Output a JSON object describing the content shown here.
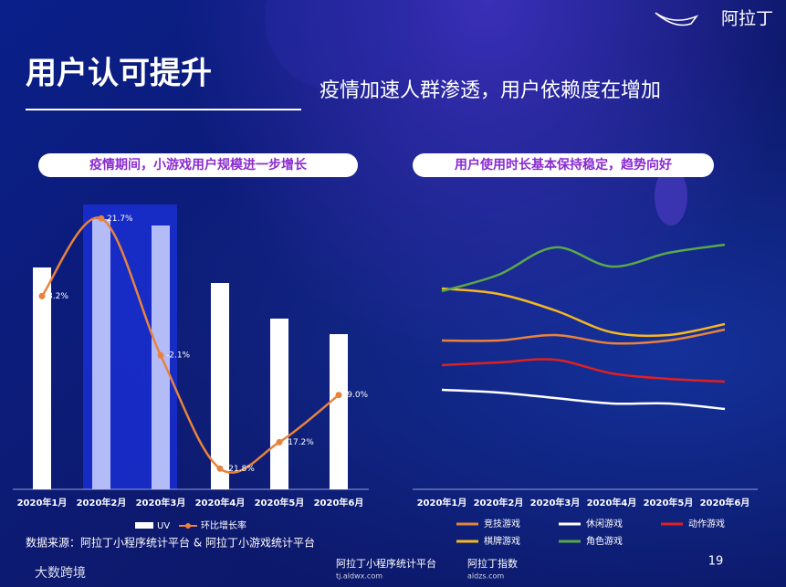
{
  "header": {
    "logo": "阿拉丁",
    "title": "用户认可提升",
    "subtitle": "疫情加速人群渗透，用户依赖度在增加"
  },
  "chart_data": [
    {
      "type": "bar",
      "title": "疫情期间，小游戏用户规模进一步增长",
      "categories": [
        "2020年1月",
        "2020年2月",
        "2020年3月",
        "2020年4月",
        "2020年5月",
        "2020年6月"
      ],
      "ylim": [
        0,
        320
      ],
      "y2lim": [
        -25.4,
        25.4
      ],
      "series": [
        {
          "name": "UV",
          "type": "bar",
          "color": "#ffffff",
          "values": [
            243,
            296,
            289,
            226,
            187,
            170
          ]
        },
        {
          "name": "环比增长率",
          "type": "line",
          "axis": "y2",
          "color": "#e8823c",
          "values": [
            8.2,
            21.7,
            -2.1,
            -21.8,
            -17.2,
            -9.0
          ],
          "value_labels": [
            "8.2%",
            "21.7%",
            "-2.1%",
            "-21.8%",
            "-17.2%",
            "-9.0%"
          ]
        }
      ]
    },
    {
      "type": "line",
      "title": "用户使用时长基本保持稳定，趋势向好",
      "categories": [
        "2020年1月",
        "2020年2月",
        "2020年3月",
        "2020年4月",
        "2020年5月",
        "2020年6月"
      ],
      "ylim": [
        0,
        100
      ],
      "series": [
        {
          "name": "竞技游戏",
          "color": "#e8823c",
          "values": [
            59,
            59,
            61,
            58,
            59,
            63
          ]
        },
        {
          "name": "休闲游戏",
          "color": "#ffffff",
          "values": [
            41,
            40,
            38,
            36,
            36,
            34
          ]
        },
        {
          "name": "动作游戏",
          "color": "#e02020",
          "values": [
            50,
            51,
            52,
            47,
            45,
            44
          ]
        },
        {
          "name": "棋牌游戏",
          "color": "#f5b820",
          "values": [
            78,
            76,
            70,
            62,
            61,
            65
          ]
        },
        {
          "name": "角色游戏",
          "color": "#5aa84a",
          "values": [
            77,
            83,
            93,
            86,
            91,
            94
          ]
        }
      ]
    }
  ],
  "footer": {
    "source": "数据来源：阿拉丁小程序统计平台 & 阿拉丁小游戏统计平台",
    "page": "19",
    "brand1": "大数跨境",
    "brand2": "阿拉丁小程序统计平台",
    "brand2_url": "tj.aldwx.com",
    "brand3": "阿拉丁指数",
    "brand3_url": "aldzs.com"
  }
}
